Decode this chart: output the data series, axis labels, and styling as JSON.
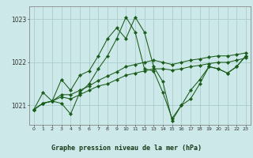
{
  "title": "Graphe pression niveau de la mer (hPa)",
  "bg_color": "#cce8e8",
  "plot_bg_color": "#cce8e8",
  "bottom_bar_color": "#6aaa6a",
  "grid_color": "#aacccc",
  "line_color": "#1a5c1a",
  "marker_color": "#1a5c1a",
  "x_ticks": [
    0,
    1,
    2,
    3,
    4,
    5,
    6,
    7,
    8,
    9,
    10,
    11,
    12,
    13,
    14,
    15,
    16,
    17,
    18,
    19,
    20,
    21,
    22,
    23
  ],
  "y_ticks": [
    1021,
    1022,
    1023
  ],
  "ylim": [
    1020.55,
    1023.3
  ],
  "xlim": [
    -0.5,
    23.5
  ],
  "series": [
    [
      1020.9,
      1021.3,
      1021.1,
      1021.6,
      1021.35,
      1021.7,
      1021.8,
      1022.15,
      1022.55,
      1022.8,
      1022.55,
      1023.05,
      1022.7,
      1021.9,
      1021.55,
      1020.65,
      1021.0,
      1021.15,
      1021.5,
      1021.9,
      1021.85,
      1021.75,
      1021.9,
      1022.15
    ],
    [
      1020.9,
      1021.05,
      1021.1,
      1021.05,
      1020.8,
      1021.3,
      1021.5,
      1021.85,
      1022.15,
      1022.55,
      1023.05,
      1022.7,
      1021.85,
      1021.8,
      1021.3,
      1020.7,
      1021.0,
      1021.35,
      1021.6,
      1021.9,
      1021.85,
      1021.75,
      1021.9,
      1022.15
    ],
    [
      1020.9,
      1021.05,
      1021.1,
      1021.2,
      1021.15,
      1021.25,
      1021.35,
      1021.45,
      1021.5,
      1021.6,
      1021.7,
      1021.75,
      1021.8,
      1021.85,
      1021.85,
      1021.82,
      1021.85,
      1021.9,
      1021.93,
      1021.97,
      1022.0,
      1022.0,
      1022.05,
      1022.1
    ],
    [
      1020.9,
      1021.05,
      1021.1,
      1021.25,
      1021.25,
      1021.35,
      1021.45,
      1021.58,
      1021.68,
      1021.78,
      1021.9,
      1021.95,
      1022.0,
      1022.05,
      1022.0,
      1021.95,
      1022.0,
      1022.05,
      1022.08,
      1022.12,
      1022.15,
      1022.15,
      1022.18,
      1022.22
    ]
  ]
}
